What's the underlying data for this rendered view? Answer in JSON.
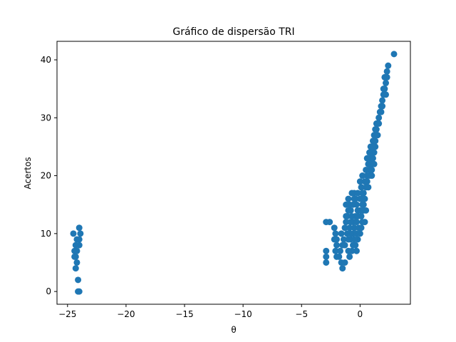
{
  "chart_data": {
    "type": "scatter",
    "title": "Gráfico de dispersão TRI",
    "xlabel": "θ",
    "ylabel": "Acertos",
    "xlim": [
      -25.9,
      4.3
    ],
    "ylim": [
      -2.2,
      43.2
    ],
    "xticks": [
      -25,
      -20,
      -15,
      -10,
      -5,
      0
    ],
    "yticks": [
      0,
      10,
      20,
      30,
      40
    ],
    "xtick_labels": [
      "−25",
      "−20",
      "−15",
      "−10",
      "−5",
      "0"
    ],
    "ytick_labels": [
      "0",
      "10",
      "20",
      "30",
      "40"
    ],
    "grid": false,
    "marker_color": "#1f77b4",
    "series": [
      {
        "points": [
          [
            -24.5,
            10
          ],
          [
            -24.0,
            11
          ],
          [
            -23.9,
            10
          ],
          [
            -24.2,
            9
          ],
          [
            -24.0,
            9
          ],
          [
            -24.0,
            8
          ],
          [
            -24.3,
            8
          ],
          [
            -24.4,
            7
          ],
          [
            -24.2,
            7
          ],
          [
            -24.4,
            6
          ],
          [
            -24.3,
            6
          ],
          [
            -24.2,
            5
          ],
          [
            -24.3,
            4
          ],
          [
            -24.1,
            2
          ],
          [
            -24.1,
            0
          ],
          [
            -24.0,
            0
          ],
          [
            -2.9,
            12
          ],
          [
            -2.6,
            12
          ],
          [
            -2.9,
            7
          ],
          [
            -2.9,
            6
          ],
          [
            -2.9,
            5
          ],
          [
            -2.2,
            11
          ],
          [
            -2.1,
            10
          ],
          [
            -2.0,
            9
          ],
          [
            -2.2,
            9
          ],
          [
            -2.0,
            8
          ],
          [
            -2.1,
            7
          ],
          [
            -2.0,
            6
          ],
          [
            -1.8,
            6
          ],
          [
            -1.6,
            5
          ],
          [
            -1.5,
            4
          ],
          [
            -1.3,
            5
          ],
          [
            -1.7,
            7
          ],
          [
            -1.5,
            8
          ],
          [
            -1.4,
            9
          ],
          [
            -1.6,
            10
          ],
          [
            -1.3,
            11
          ],
          [
            -1.2,
            12
          ],
          [
            -1.1,
            13
          ],
          [
            -1.2,
            15
          ],
          [
            -1.0,
            16
          ],
          [
            -0.9,
            15
          ],
          [
            -0.8,
            14
          ],
          [
            -0.7,
            17
          ],
          [
            -0.5,
            17
          ],
          [
            -0.4,
            16
          ],
          [
            -0.3,
            15
          ],
          [
            -0.2,
            14
          ],
          [
            -0.4,
            13
          ],
          [
            -0.6,
            12
          ],
          [
            -0.5,
            11
          ],
          [
            -0.3,
            10
          ],
          [
            -0.2,
            9
          ],
          [
            -0.4,
            8
          ],
          [
            -0.7,
            7
          ],
          [
            -0.9,
            6
          ],
          [
            -1.0,
            7
          ],
          [
            -0.8,
            9
          ],
          [
            -0.6,
            10
          ],
          [
            -0.9,
            11
          ],
          [
            -1.1,
            10
          ],
          [
            -1.3,
            8
          ],
          [
            -1.0,
            9
          ],
          [
            -0.8,
            12
          ],
          [
            -0.7,
            13
          ],
          [
            -0.9,
            14
          ],
          [
            -0.6,
            15
          ],
          [
            -0.5,
            16
          ],
          [
            -0.2,
            13
          ],
          [
            -0.3,
            12
          ],
          [
            -0.1,
            11
          ],
          [
            -0.5,
            9
          ],
          [
            -0.6,
            8
          ],
          [
            -0.3,
            7
          ],
          [
            -0.8,
            10
          ],
          [
            -1.2,
            13
          ],
          [
            -1.0,
            14
          ],
          [
            0.0,
            10
          ],
          [
            0.1,
            11
          ],
          [
            0.2,
            12
          ],
          [
            0.1,
            13
          ],
          [
            0.0,
            14
          ],
          [
            0.2,
            15
          ],
          [
            0.3,
            14
          ],
          [
            0.4,
            16
          ],
          [
            0.3,
            17
          ],
          [
            0.5,
            18
          ],
          [
            0.4,
            19
          ],
          [
            0.6,
            20
          ],
          [
            0.5,
            21
          ],
          [
            0.0,
            19
          ],
          [
            0.1,
            18
          ],
          [
            0.2,
            17
          ],
          [
            0.1,
            16
          ],
          [
            0.3,
            15
          ],
          [
            0.0,
            16
          ],
          [
            0.7,
            22
          ],
          [
            0.8,
            21
          ],
          [
            0.9,
            23
          ],
          [
            1.0,
            24
          ],
          [
            0.9,
            25
          ],
          [
            1.1,
            26
          ],
          [
            1.0,
            22
          ],
          [
            1.2,
            24
          ],
          [
            1.1,
            23
          ],
          [
            1.3,
            25
          ],
          [
            1.2,
            27
          ],
          [
            1.4,
            28
          ],
          [
            1.3,
            26
          ],
          [
            1.5,
            27
          ],
          [
            1.4,
            29
          ],
          [
            1.6,
            30
          ],
          [
            1.5,
            29
          ],
          [
            1.7,
            31
          ],
          [
            1.8,
            32
          ],
          [
            1.9,
            33
          ],
          [
            2.0,
            34
          ],
          [
            1.9,
            32
          ],
          [
            2.1,
            35
          ],
          [
            2.2,
            36
          ],
          [
            2.1,
            37
          ],
          [
            2.3,
            38
          ],
          [
            2.4,
            39
          ],
          [
            2.3,
            37
          ],
          [
            2.0,
            35
          ],
          [
            2.9,
            41
          ],
          [
            0.6,
            19
          ],
          [
            0.8,
            20
          ],
          [
            1.0,
            21
          ],
          [
            0.7,
            18
          ],
          [
            0.9,
            22
          ],
          [
            1.2,
            22
          ],
          [
            0.4,
            12
          ],
          [
            0.5,
            14
          ],
          [
            0.2,
            20
          ],
          [
            0.8,
            24
          ],
          [
            1.0,
            20
          ],
          [
            1.1,
            25
          ],
          [
            -0.2,
            17
          ],
          [
            0.6,
            23
          ],
          [
            1.3,
            28
          ],
          [
            1.6,
            29
          ],
          [
            1.8,
            31
          ],
          [
            2.2,
            34
          ]
        ]
      }
    ]
  }
}
